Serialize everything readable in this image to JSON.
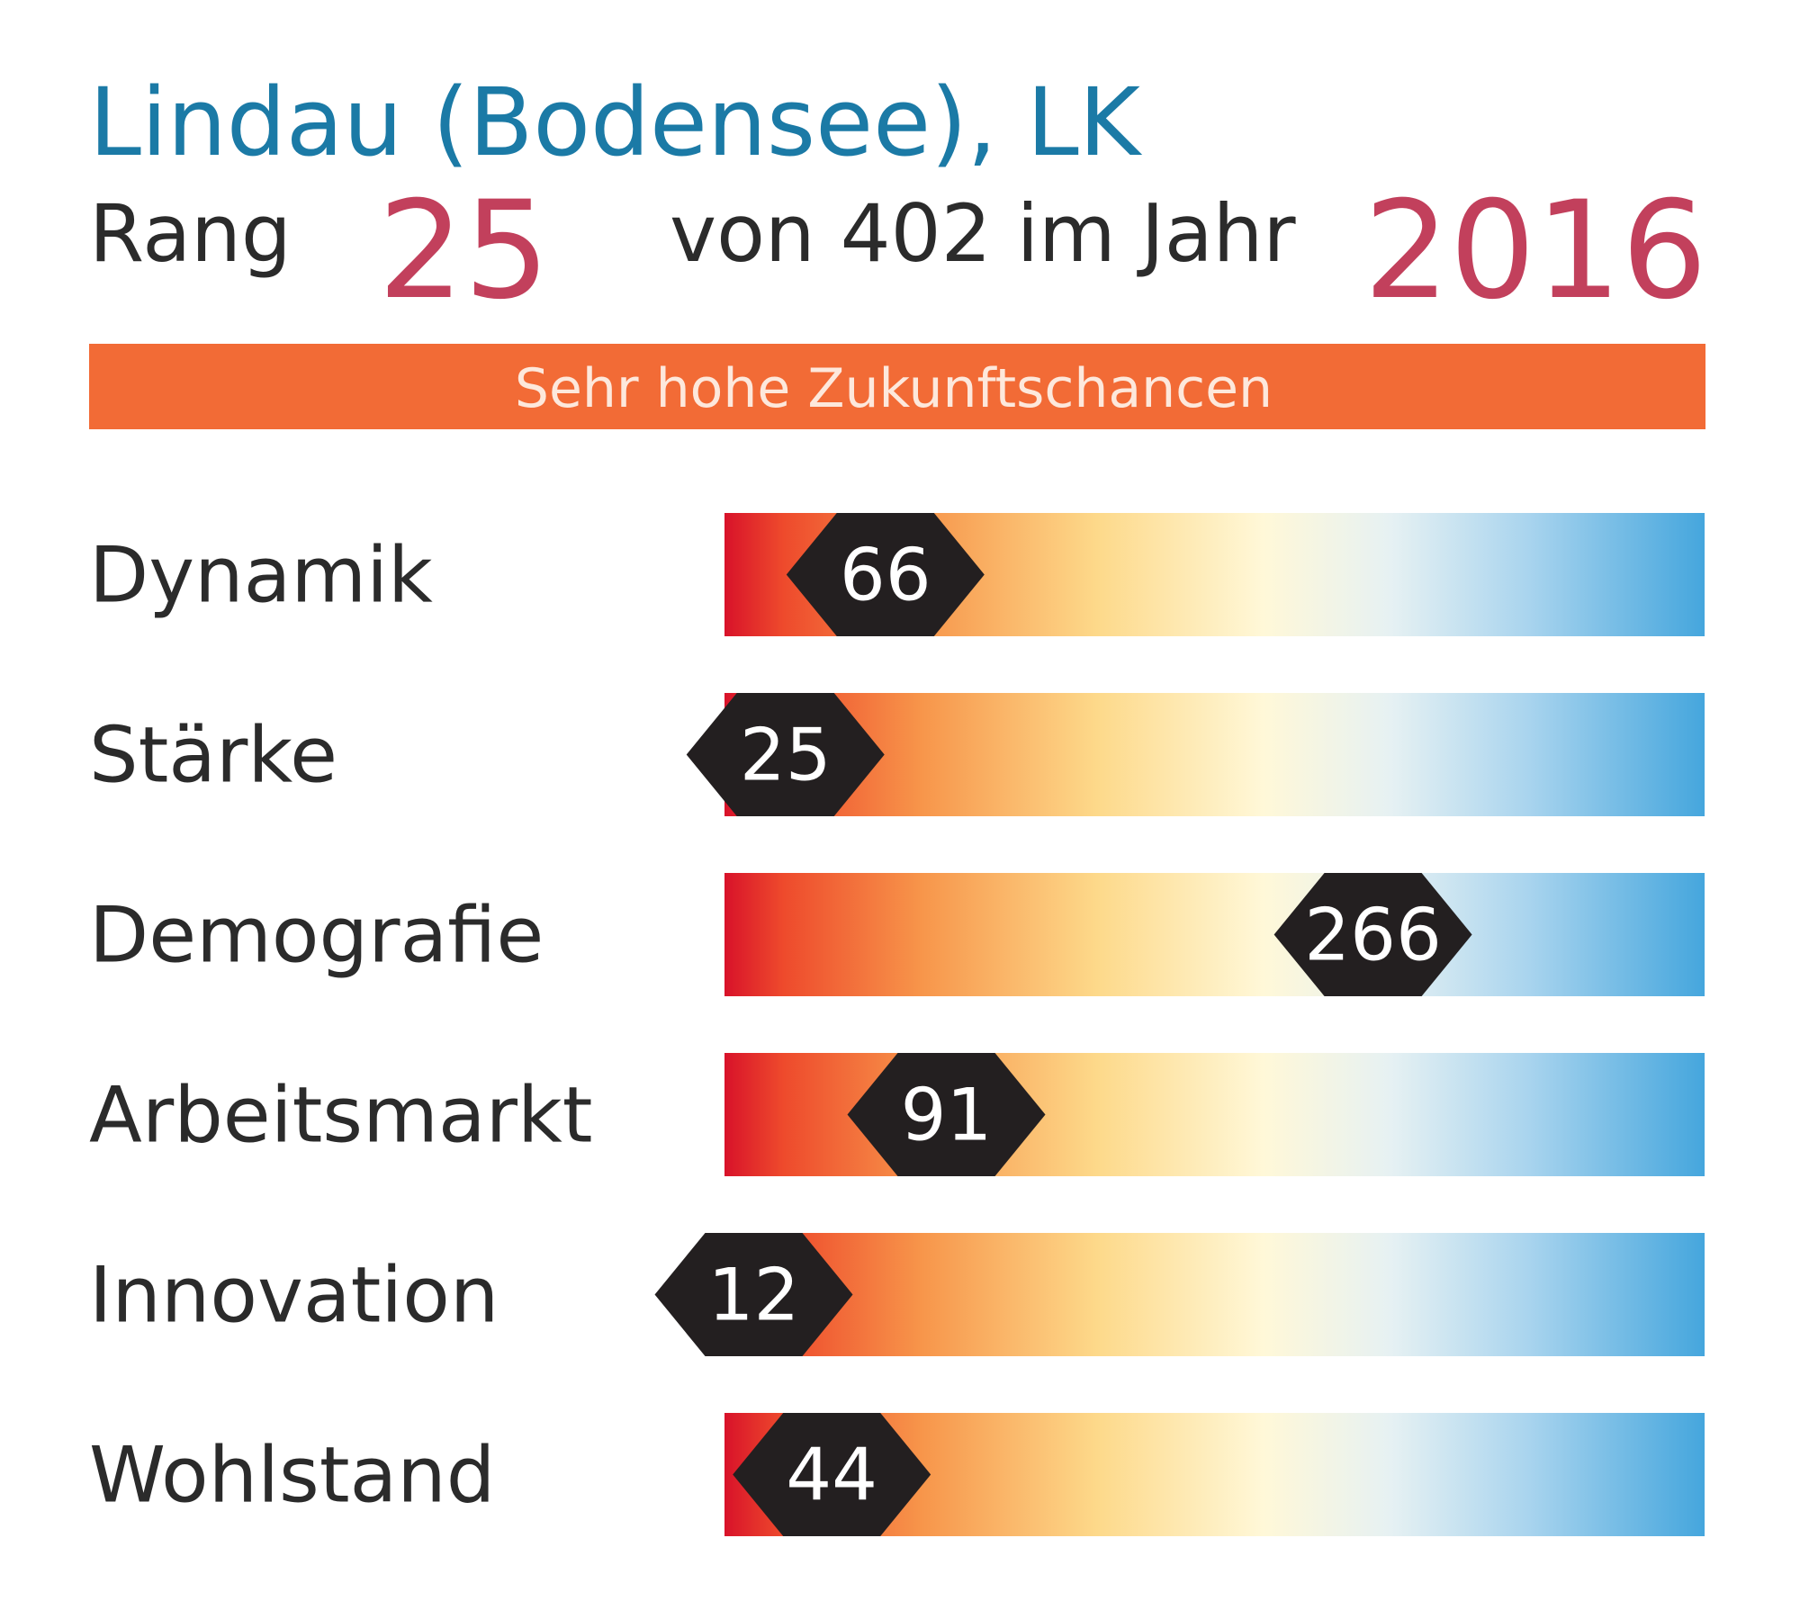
{
  "chart_data": {
    "type": "rank-bar",
    "title": "Lindau (Bodensee), LK",
    "rank_label": "Rang",
    "rank": 25,
    "rank_total_text": "von 402 im Jahr",
    "year": 2016,
    "banner": "Sehr hohe Zukunftschancen",
    "categories": [
      "Dynamik",
      "Stärke",
      "Demografie",
      "Arbeitsmarkt",
      "Innovation",
      "Wohlstand"
    ],
    "values": [
      66,
      25,
      266,
      91,
      12,
      44
    ],
    "xlim": [
      0,
      402
    ],
    "title_color": "#1b7aa6",
    "highlight_color": "#c2405c",
    "banner_color": "#f26b36",
    "marker_color": "#231f20"
  }
}
